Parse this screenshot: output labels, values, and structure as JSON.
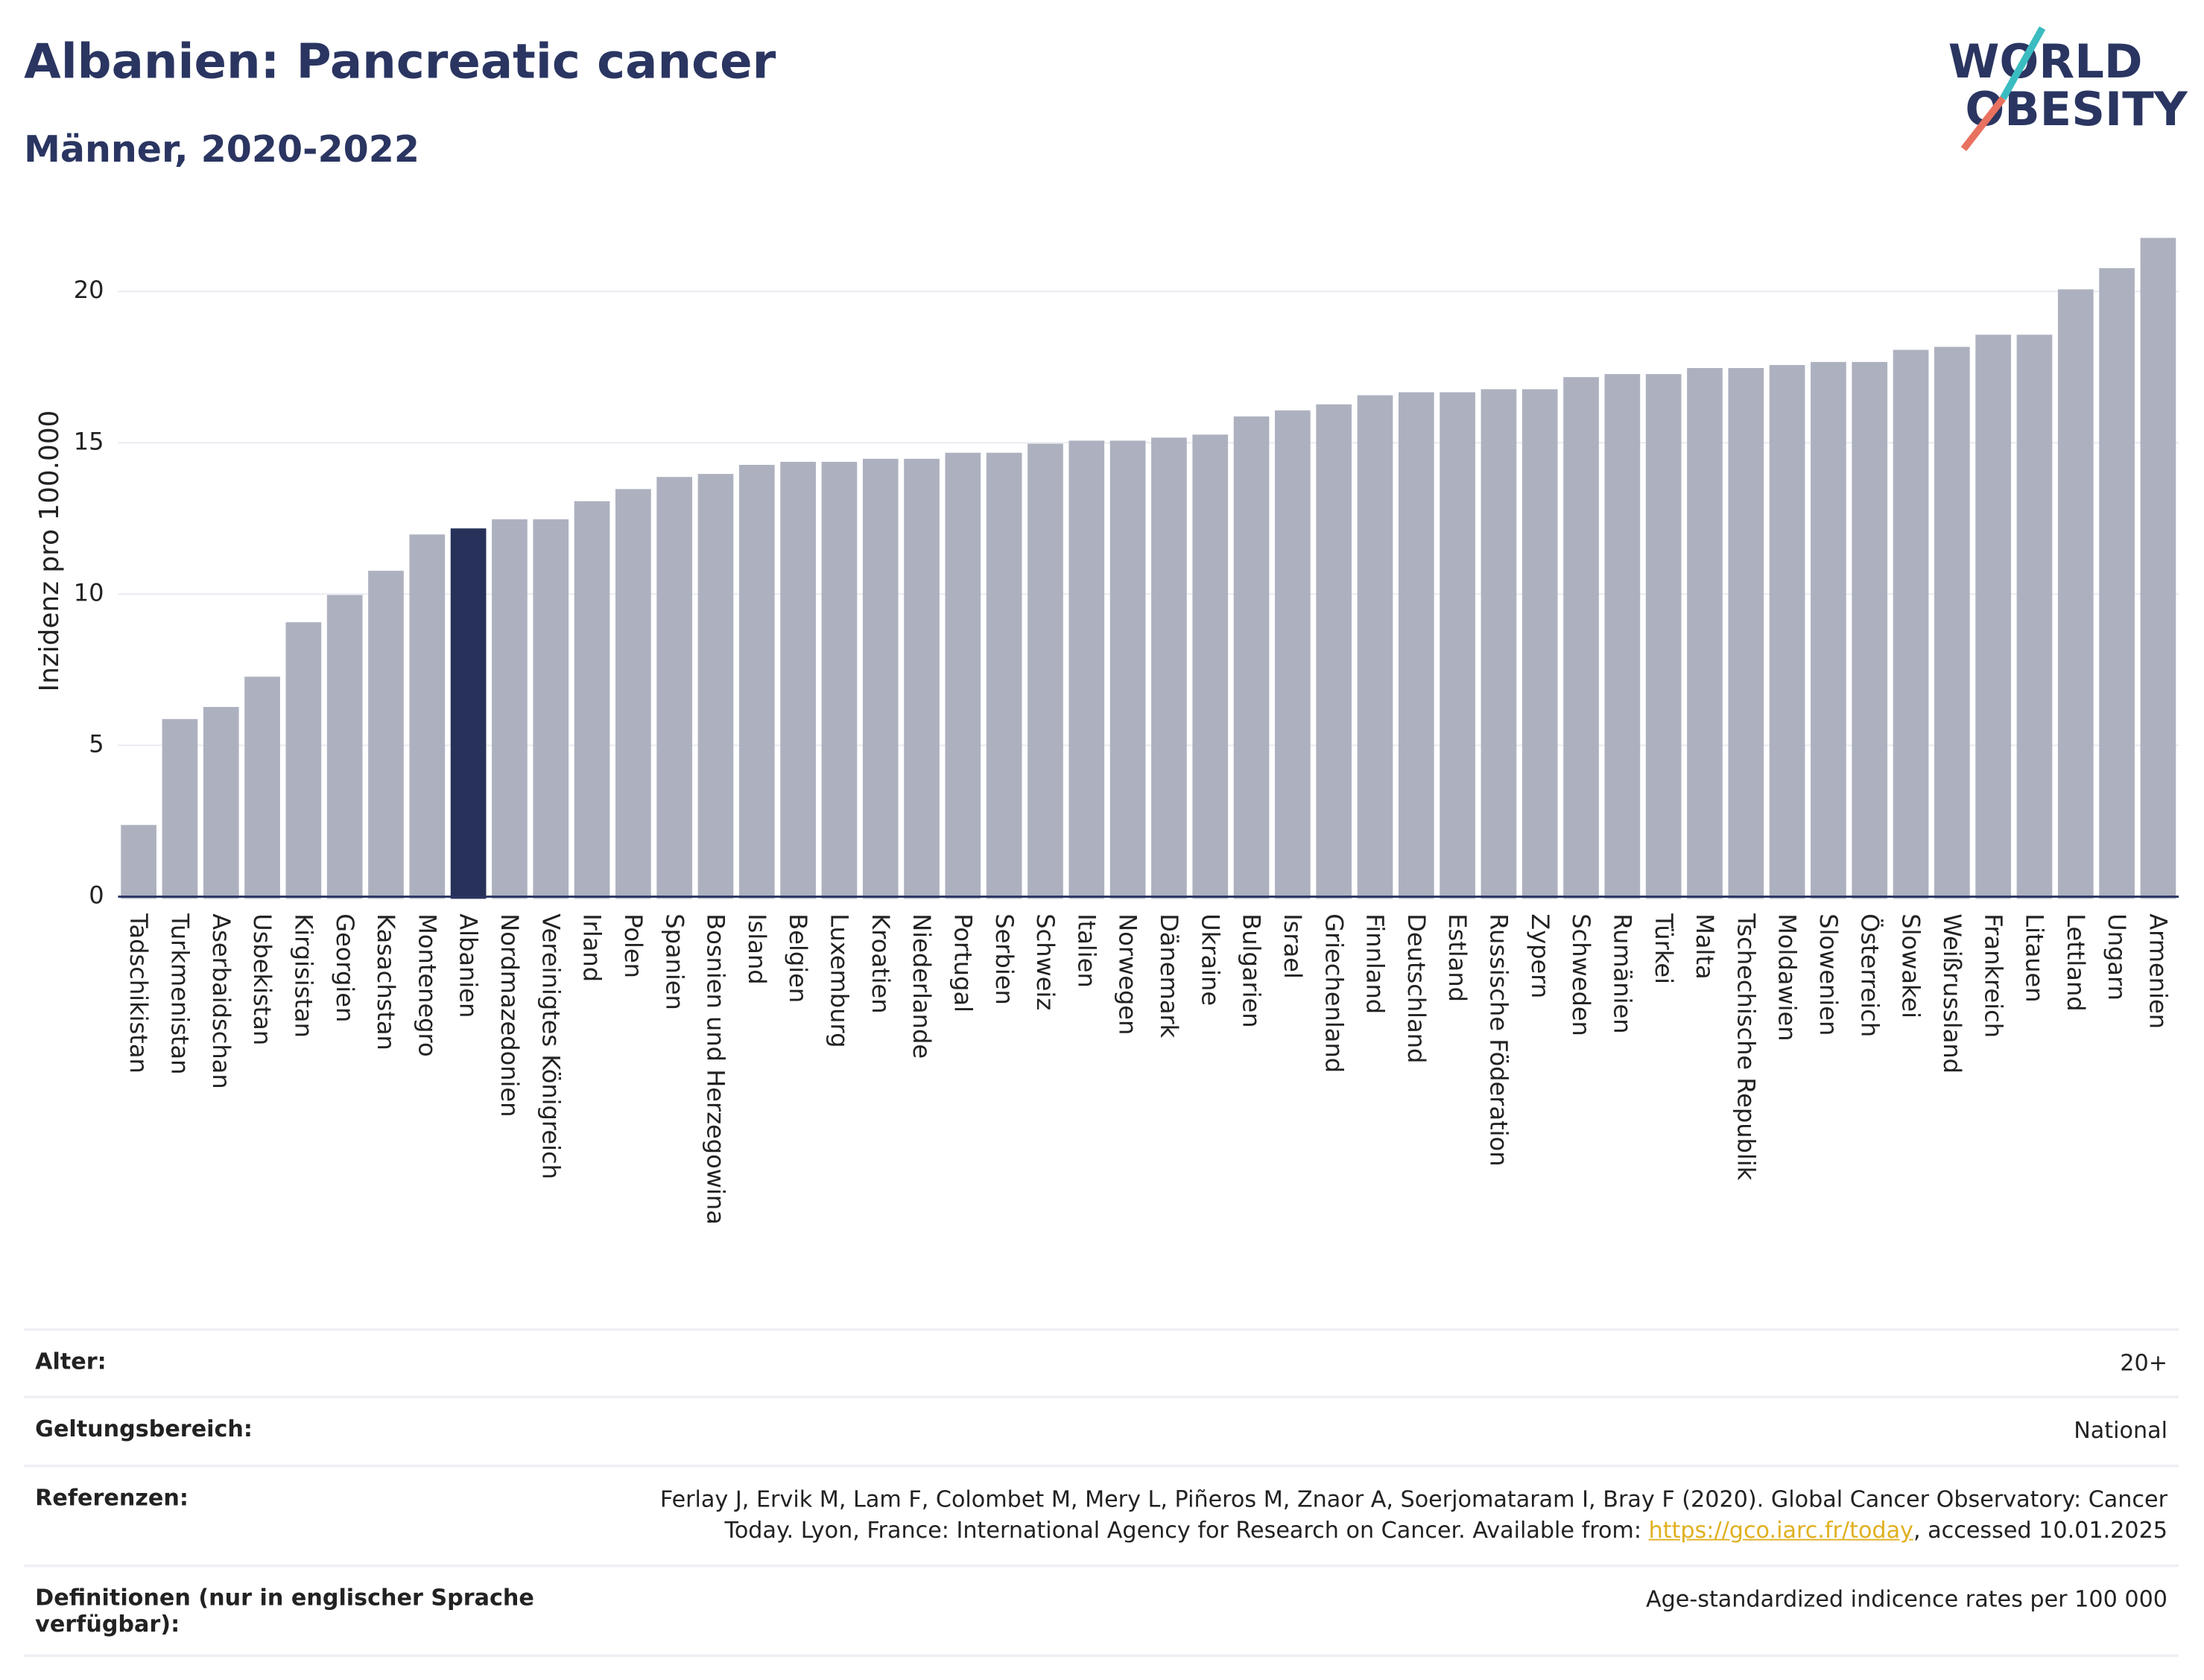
{
  "chart_data": {
    "type": "bar",
    "title": "Albanien: Pancreatic cancer",
    "subtitle": "Männer, 2020-2022",
    "logo": [
      "WORLD",
      "OBESITY"
    ],
    "y_label": "Inzidenz pro 100.000",
    "categories": [
      "Tadschikistan",
      "Turkmenistan",
      "Aserbaidschan",
      "Usbekistan",
      "Kirgisistan",
      "Georgien",
      "Kasachstan",
      "Montenegro",
      "Albanien",
      "Nordmazedonien",
      "Vereinigtes Königreich",
      "Irland",
      "Polen",
      "Spanien",
      "Bosnien und Herzegowina",
      "Island",
      "Belgien",
      "Luxemburg",
      "Kroatien",
      "Niederlande",
      "Portugal",
      "Serbien",
      "Schweiz",
      "Italien",
      "Norwegen",
      "Dänemark",
      "Ukraine",
      "Bulgarien",
      "Israel",
      "Griechenland",
      "Finnland",
      "Deutschland",
      "Estland",
      "Russische Föderation",
      "Zypern",
      "Schweden",
      "Rumänien",
      "Türkei",
      "Malta",
      "Tschechische Republik",
      "Moldawien",
      "Slowenien",
      "Österreich",
      "Slowakei",
      "Weißrussland",
      "Frankreich",
      "Litauen",
      "Lettland",
      "Ungarn",
      "Armenien"
    ],
    "values": [
      2.3,
      5.8,
      6.2,
      7.2,
      9.0,
      9.9,
      10.7,
      11.9,
      12.1,
      12.4,
      12.4,
      13.0,
      13.4,
      13.8,
      13.9,
      14.2,
      14.3,
      14.3,
      14.4,
      14.4,
      14.6,
      14.6,
      14.9,
      15.0,
      15.0,
      15.1,
      15.2,
      15.8,
      16.0,
      16.2,
      16.5,
      16.6,
      16.6,
      16.7,
      16.7,
      17.1,
      17.2,
      17.2,
      17.4,
      17.4,
      17.5,
      17.6,
      17.6,
      18.0,
      18.1,
      18.5,
      18.5,
      20.0,
      20.7,
      21.7
    ],
    "colors": [
      "#bcc0d0",
      "#bcc0d0",
      "#bcc0d0",
      "#bcc0d0",
      "#bcc0d0",
      "#bcc0d0",
      "#bcc0d0",
      "#bcc0d0",
      "#2a3561",
      "#bcc0d0",
      "#bcc0d0",
      "#bcc0d0",
      "#bcc0d0",
      "#bcc0d0",
      "#bcc0d0",
      "#bcc0d0",
      "#bcc0d0",
      "#bcc0d0",
      "#bcc0d0",
      "#bcc0d0",
      "#bcc0d0",
      "#bcc0d0",
      "#bcc0d0",
      "#bcc0d0",
      "#bcc0d0",
      "#bcc0d0",
      "#bcc0d0",
      "#bcc0d0",
      "#bcc0d0",
      "#bcc0d0",
      "#bcc0d0",
      "#bcc0d0",
      "#bcc0d0",
      "#bcc0d0",
      "#bcc0d0",
      "#bcc0d0",
      "#bcc0d0",
      "#bcc0d0",
      "#bcc0d0",
      "#bcc0d0",
      "#bcc0d0",
      "#bcc0d0",
      "#bcc0d0",
      "#bcc0d0",
      "#bcc0d0",
      "#bcc0d0",
      "#bcc0d0",
      "#bcc0d0",
      "#bcc0d0",
      "#bcc0d0"
    ],
    "ylim": [
      0,
      22.2
    ],
    "yticks": [
      0,
      5,
      10,
      15,
      20
    ],
    "grid": true
  },
  "details": [
    {
      "label": "Alter:",
      "value": "20+"
    },
    {
      "label": "Geltungsbereich:",
      "value": "National"
    },
    {
      "label": "Referenzen:",
      "value": "Ferlay J, Ervik M, Lam F, Colombet M, Mery L, Piñeros M, Znaor A, Soerjomataram I, Bray F (2020). Global Cancer Observatory: Cancer Today. Lyon, France: International Agency for Research on Cancer. Available from:",
      "link": "https://gco.iarc.fr/today",
      "value_end": ", accessed 10.01.2025"
    },
    {
      "label": "Definitionen (nur in englischer Sprache verfügbar):",
      "value": "Age-standardized indicence rates per 100 000"
    }
  ]
}
